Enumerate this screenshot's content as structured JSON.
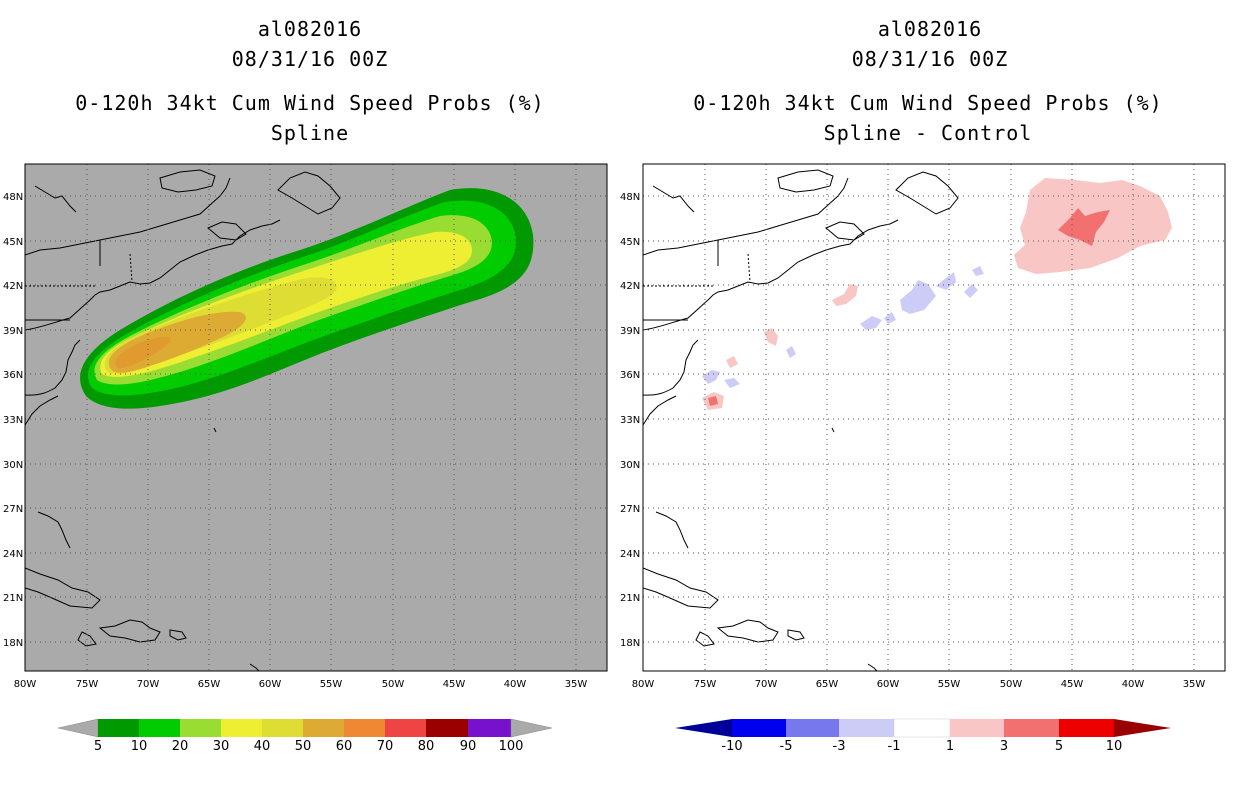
{
  "left_panel": {
    "storm_id": "al082016",
    "datetime": "08/31/16 00Z",
    "product": "0-120h 34kt Cum Wind Speed Probs (%)",
    "variant": "Spline"
  },
  "right_panel": {
    "storm_id": "al082016",
    "datetime": "08/31/16 00Z",
    "product": "0-120h 34kt Cum Wind Speed Probs (%)",
    "variant": "Spline - Control"
  },
  "axes": {
    "lat_labels": [
      "48N",
      "45N",
      "42N",
      "39N",
      "36N",
      "33N",
      "30N",
      "27N",
      "24N",
      "21N",
      "18N"
    ],
    "lon_labels": [
      "80W",
      "75W",
      "70W",
      "65W",
      "60W",
      "55W",
      "50W",
      "45W",
      "40W",
      "35W"
    ]
  },
  "left_colorbar": {
    "labels": [
      "5",
      "10",
      "20",
      "30",
      "40",
      "50",
      "60",
      "70",
      "80",
      "90",
      "100"
    ],
    "colors": [
      "#009900",
      "#00cc00",
      "#99dd33",
      "#eeee33",
      "#dddd33",
      "#ddaa33",
      "#ee8833",
      "#ee4444",
      "#990000",
      "#7711cc"
    ],
    "under_color": "#aaaaaa",
    "over_color": "#aaaaaa"
  },
  "right_colorbar": {
    "labels": [
      "-10",
      "-5",
      "-3",
      "-1",
      "1",
      "3",
      "5",
      "10"
    ],
    "colors": [
      "#0000ee",
      "#7777ee",
      "#ccccf7",
      "#ffffff",
      "#f9c6c6",
      "#f27070",
      "#ee0000"
    ],
    "under_color": "#000099",
    "over_color": "#990000"
  }
}
